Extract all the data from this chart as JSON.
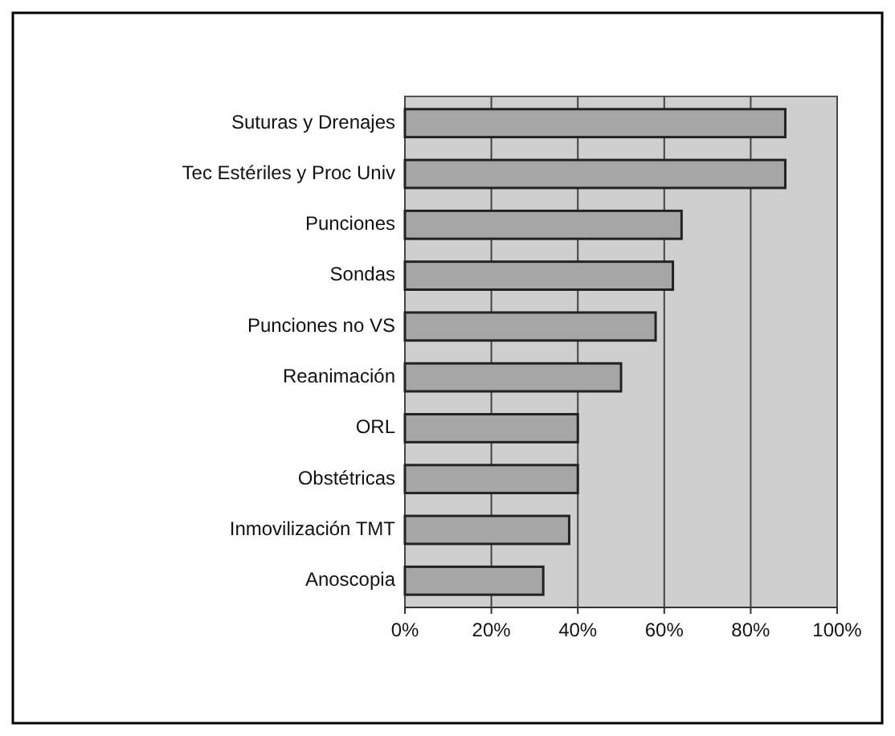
{
  "chart_data": {
    "type": "bar",
    "orientation": "horizontal",
    "categories": [
      "Suturas y Drenajes",
      "Tec Estériles y Proc Univ",
      "Punciones",
      "Sondas",
      "Punciones no VS",
      "Reanimación",
      "ORL",
      "Obstétricas",
      "Inmovilización TMT",
      "Anoscopia"
    ],
    "values": [
      88,
      88,
      64,
      62,
      58,
      50,
      40,
      40,
      38,
      32
    ],
    "color": "#a6a6a6",
    "xlim": [
      0,
      100
    ],
    "xticks": [
      {
        "value": 0,
        "label": "0%"
      },
      {
        "value": 20,
        "label": "20%"
      },
      {
        "value": 40,
        "label": "40%"
      },
      {
        "value": 60,
        "label": "60%"
      },
      {
        "value": 80,
        "label": "80%"
      },
      {
        "value": 100,
        "label": "100%"
      }
    ],
    "grid": "x"
  }
}
